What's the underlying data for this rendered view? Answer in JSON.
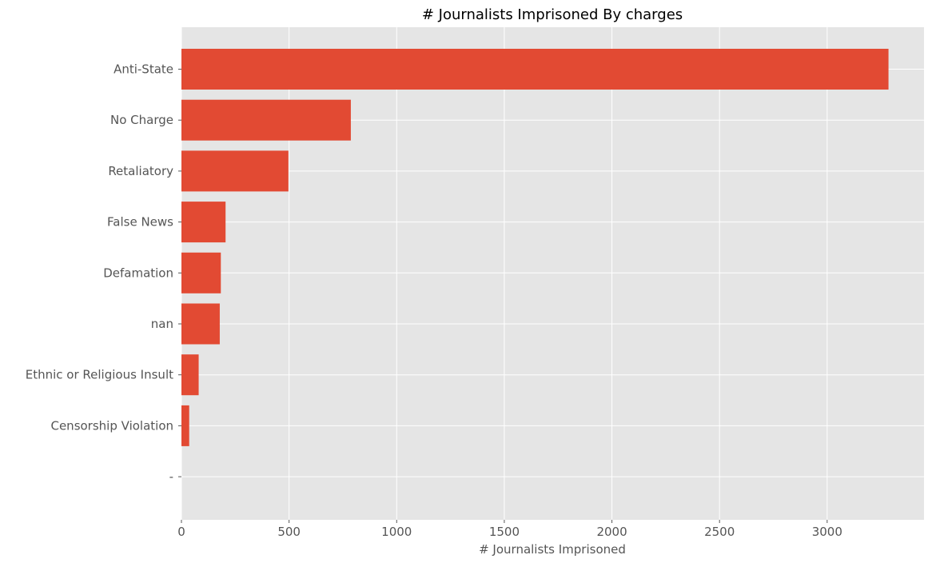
{
  "chart_data": {
    "type": "bar",
    "orientation": "horizontal",
    "title": "# Journalists Imprisoned By charges",
    "xlabel": "# Journalists Imprisoned",
    "ylabel": "",
    "categories": [
      "Anti-State",
      "No Charge",
      "Retaliatory",
      "False News",
      "Defamation",
      "nan",
      "Ethnic or Religious Insult",
      "Censorship Violation",
      "-"
    ],
    "values": [
      3285,
      787,
      497,
      205,
      183,
      178,
      80,
      36,
      0
    ],
    "xlim": [
      0,
      3450
    ],
    "xticks": [
      0,
      500,
      1000,
      1500,
      2000,
      2500,
      3000
    ],
    "grid": true,
    "bar_color": "#e24a33",
    "background_color": "#e5e5e5",
    "grid_color": "#ffffff"
  }
}
